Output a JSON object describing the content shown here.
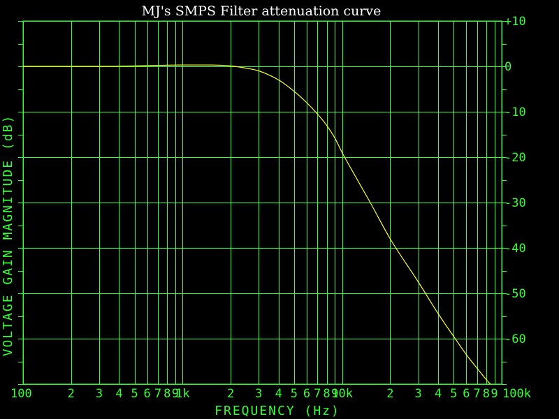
{
  "chart_data": {
    "type": "line",
    "title": "MJ's SMPS Filter attenuation curve",
    "xlabel": "FREQUENCY (Hz)",
    "ylabel": "VOLTAGE GAIN MAGNITUDE (dB)",
    "x_scale": "log",
    "xlim": [
      100,
      100000
    ],
    "ylim": [
      -70,
      10
    ],
    "grid": true,
    "colors": {
      "background": "#000000",
      "grid": "#33ff33",
      "curve": "#ffff33",
      "title": "#ffffff"
    },
    "x_tick_labels": [
      {
        "value": 100,
        "label": "100"
      },
      {
        "value": 200,
        "label": "2"
      },
      {
        "value": 300,
        "label": "3"
      },
      {
        "value": 400,
        "label": "4"
      },
      {
        "value": 500,
        "label": "5"
      },
      {
        "value": 600,
        "label": "6"
      },
      {
        "value": 700,
        "label": "7"
      },
      {
        "value": 800,
        "label": "8"
      },
      {
        "value": 900,
        "label": "9"
      },
      {
        "value": 1000,
        "label": "1k"
      },
      {
        "value": 2000,
        "label": "2"
      },
      {
        "value": 3000,
        "label": "3"
      },
      {
        "value": 4000,
        "label": "4"
      },
      {
        "value": 5000,
        "label": "5"
      },
      {
        "value": 6000,
        "label": "6"
      },
      {
        "value": 7000,
        "label": "7"
      },
      {
        "value": 8000,
        "label": "8"
      },
      {
        "value": 9000,
        "label": "9"
      },
      {
        "value": 10000,
        "label": "10k"
      },
      {
        "value": 20000,
        "label": "2"
      },
      {
        "value": 30000,
        "label": "3"
      },
      {
        "value": 40000,
        "label": "4"
      },
      {
        "value": 50000,
        "label": "5"
      },
      {
        "value": 60000,
        "label": "6"
      },
      {
        "value": 70000,
        "label": "7"
      },
      {
        "value": 80000,
        "label": "8"
      },
      {
        "value": 90000,
        "label": "9"
      },
      {
        "value": 100000,
        "label": "100k"
      }
    ],
    "y_tick_labels": [
      {
        "value": 10,
        "label": "+10"
      },
      {
        "value": 0,
        "label": "0"
      },
      {
        "value": -10,
        "label": "-10"
      },
      {
        "value": -20,
        "label": "-20"
      },
      {
        "value": -30,
        "label": "-30"
      },
      {
        "value": -40,
        "label": "-40"
      },
      {
        "value": -50,
        "label": "-50"
      },
      {
        "value": -60,
        "label": "-60"
      }
    ],
    "series": [
      {
        "x": [
          100,
          300,
          500,
          1000,
          1500,
          2000,
          2500,
          3000,
          4000,
          5000,
          6000,
          7000,
          8000,
          9000,
          10000,
          12000,
          15000,
          20000,
          30000,
          40000,
          50000,
          60000,
          70000,
          80000,
          90000,
          100000
        ],
        "y": [
          0,
          0,
          0.1,
          0.3,
          0.3,
          0.1,
          -0.4,
          -1.0,
          -3.0,
          -5.5,
          -8.0,
          -10.5,
          -13.0,
          -15.8,
          -19.0,
          -24.0,
          -30.0,
          -38.0,
          -47.5,
          -54.5,
          -59.5,
          -63.5,
          -66.5,
          -69.0,
          -71.0,
          -73.0
        ]
      }
    ]
  }
}
